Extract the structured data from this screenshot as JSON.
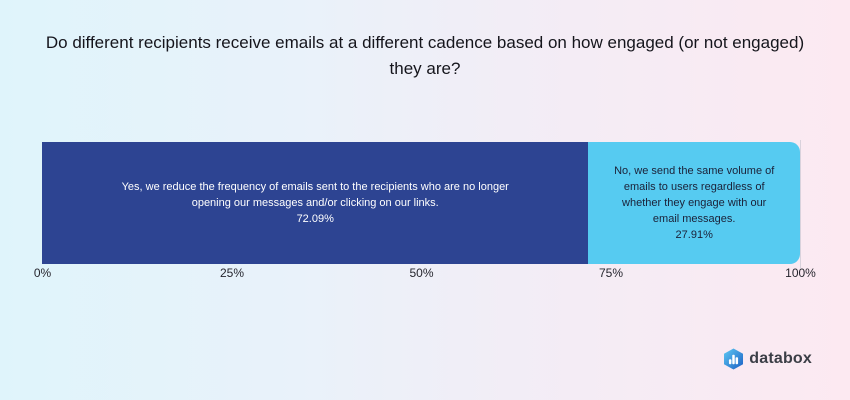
{
  "title": "Do different recipients receive emails at a different cadence based on how engaged (or not engaged) they are?",
  "chart_data": {
    "type": "bar",
    "subtype": "horizontal-stacked-single-bar",
    "title": "Do different recipients receive emails at a different cadence based on how engaged (or not engaged) they are?",
    "unit": "%",
    "xlim": [
      0,
      100
    ],
    "x_ticks": [
      "0%",
      "25%",
      "50%",
      "75%",
      "100%"
    ],
    "x_tick_values": [
      0,
      25,
      50,
      75,
      100
    ],
    "legend": "none",
    "gridline_visible_at": "100%",
    "segments": [
      {
        "label": "Yes, we reduce the frequency of emails sent to the recipients who are no longer opening our messages and/or clicking on our links.",
        "value": 72.09,
        "value_label": "72.09%",
        "color": "#2d4492",
        "text_color": "#ffffff"
      },
      {
        "label": "No, we send the same volume of emails to users regardless of whether they engage with our email messages.",
        "value": 27.91,
        "value_label": "27.91%",
        "color": "#56cbf1",
        "text_color": "#1b2138"
      }
    ]
  },
  "footer": {
    "brand": "databox",
    "logo_icon": "databox-hexagon-bar-chart-icon"
  },
  "colors": {
    "background_gradient_left": "#dff4fb",
    "background_gradient_right": "#fce9f1",
    "gridline": "#d9d2dc",
    "title_text": "#15151c",
    "tick_text": "#26262e",
    "brand_text": "#3b3e46"
  }
}
